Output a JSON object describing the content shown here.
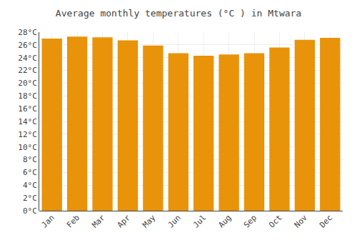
{
  "chart_data": {
    "type": "bar",
    "title": "Average monthly temperatures (°C ) in Mtwara",
    "categories": [
      "Jan",
      "Feb",
      "Mar",
      "Apr",
      "May",
      "Jun",
      "Jul",
      "Aug",
      "Sep",
      "Oct",
      "Nov",
      "Dec"
    ],
    "values": [
      27.0,
      27.3,
      27.2,
      26.7,
      25.9,
      24.7,
      24.3,
      24.5,
      24.7,
      25.6,
      26.8,
      27.1
    ],
    "color": "#E8930A",
    "ylim": [
      0,
      28
    ],
    "yticks": [
      {
        "value": 0,
        "label": "0°C"
      },
      {
        "value": 2,
        "label": "2°C"
      },
      {
        "value": 4,
        "label": "4°C"
      },
      {
        "value": 6,
        "label": "6°C"
      },
      {
        "value": 8,
        "label": "8°C"
      },
      {
        "value": 10,
        "label": "10°C"
      },
      {
        "value": 12,
        "label": "12°C"
      },
      {
        "value": 14,
        "label": "14°C"
      },
      {
        "value": 16,
        "label": "16°C"
      },
      {
        "value": 18,
        "label": "18°C"
      },
      {
        "value": 20,
        "label": "20°C"
      },
      {
        "value": 22,
        "label": "22°C"
      },
      {
        "value": 24,
        "label": "24°C"
      },
      {
        "value": 26,
        "label": "26°C"
      },
      {
        "value": 28,
        "label": "28°C"
      }
    ],
    "grid": true
  }
}
